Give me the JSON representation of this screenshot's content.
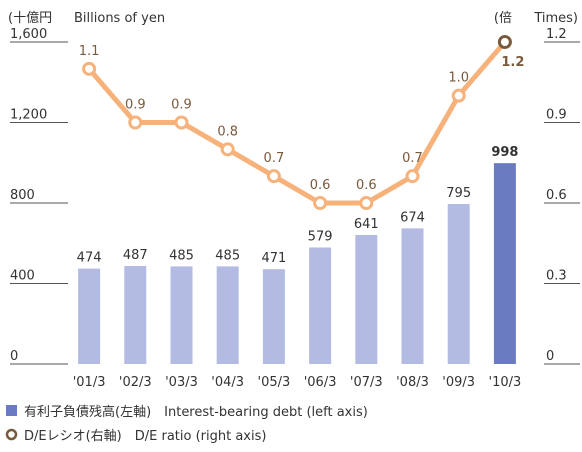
{
  "chart_data": {
    "type": "bar_line",
    "ylabel_unit": "(十億円",
    "ylabel": "Billions of yen",
    "y2label_unit": "(倍",
    "y2label": "Times)",
    "categories": [
      "'01/3",
      "'02/3",
      "'03/3",
      "'04/3",
      "'05/3",
      "'06/3",
      "'07/3",
      "'08/3",
      "'09/3",
      "'10/3"
    ],
    "series": [
      {
        "name": "有利子負債残高(左軸)　Interest-bearing debt (left axis)",
        "type": "bar",
        "colors": [
          "#b3bbe3",
          "#b3bbe3",
          "#b3bbe3",
          "#b3bbe3",
          "#b3bbe3",
          "#b3bbe3",
          "#b3bbe3",
          "#b3bbe3",
          "#b3bbe3",
          "#6b7bc2"
        ],
        "color": "#6b7bc2",
        "values": [
          474,
          487,
          485,
          485,
          471,
          579,
          641,
          674,
          795,
          998
        ]
      },
      {
        "name": "D/Eレシオ(右軸)　D/E ratio (right axis)",
        "type": "line",
        "axis": "y2",
        "color": "#f6b27a",
        "marker_color": "#7a5a3c",
        "values": [
          1.1,
          0.9,
          0.9,
          0.8,
          0.7,
          0.6,
          0.6,
          0.7,
          1.0,
          1.2
        ],
        "value_labels": [
          "1.1",
          "0.9",
          "0.9",
          "0.8",
          "0.7",
          "0.6",
          "0.6",
          "0.7",
          "1.0",
          "1.2"
        ]
      }
    ],
    "ylim": [
      0,
      1600
    ],
    "yticks": [
      0,
      400,
      800,
      {
        "value": 1200,
        "label": "1,200"
      },
      {
        "value": 1600,
        "label": "1,600"
      }
    ],
    "y2lim": [
      0,
      1.2
    ],
    "y2ticks": [
      0,
      0.3,
      0.6,
      0.9,
      1.2
    ]
  }
}
